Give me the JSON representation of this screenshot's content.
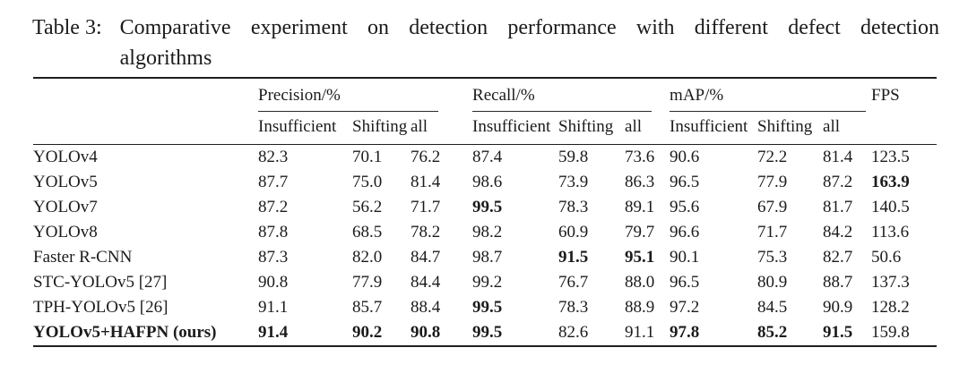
{
  "title": {
    "label": "Table 3:",
    "line1": "Comparative experiment on detection performance with different defect detection",
    "line2": "algorithms"
  },
  "table": {
    "groups": [
      {
        "label": "Precision/%"
      },
      {
        "label": "Recall/%"
      },
      {
        "label": "mAP/%"
      }
    ],
    "fps_label": "FPS",
    "subheaders": [
      "Insufficient",
      "Shifting",
      "all"
    ],
    "rows": [
      {
        "method": "YOLOv4",
        "method_bold": false,
        "values": [
          "82.3",
          "70.1",
          "76.2",
          "87.4",
          "59.8",
          "73.6",
          "90.6",
          "72.2",
          "81.4",
          "123.5"
        ],
        "bold": [
          0,
          0,
          0,
          0,
          0,
          0,
          0,
          0,
          0,
          0
        ]
      },
      {
        "method": "YOLOv5",
        "method_bold": false,
        "values": [
          "87.7",
          "75.0",
          "81.4",
          "98.6",
          "73.9",
          "86.3",
          "96.5",
          "77.9",
          "87.2",
          "163.9"
        ],
        "bold": [
          0,
          0,
          0,
          0,
          0,
          0,
          0,
          0,
          0,
          1
        ]
      },
      {
        "method": "YOLOv7",
        "method_bold": false,
        "values": [
          "87.2",
          "56.2",
          "71.7",
          "99.5",
          "78.3",
          "89.1",
          "95.6",
          "67.9",
          "81.7",
          "140.5"
        ],
        "bold": [
          0,
          0,
          0,
          1,
          0,
          0,
          0,
          0,
          0,
          0
        ]
      },
      {
        "method": "YOLOv8",
        "method_bold": false,
        "values": [
          "87.8",
          "68.5",
          "78.2",
          "98.2",
          "60.9",
          "79.7",
          "96.6",
          "71.7",
          "84.2",
          "113.6"
        ],
        "bold": [
          0,
          0,
          0,
          0,
          0,
          0,
          0,
          0,
          0,
          0
        ]
      },
      {
        "method": "Faster R-CNN",
        "method_bold": false,
        "values": [
          "87.3",
          "82.0",
          "84.7",
          "98.7",
          "91.5",
          "95.1",
          "90.1",
          "75.3",
          "82.7",
          "50.6"
        ],
        "bold": [
          0,
          0,
          0,
          0,
          1,
          1,
          0,
          0,
          0,
          0
        ]
      },
      {
        "method": "STC-YOLOv5 [27]",
        "method_bold": false,
        "values": [
          "90.8",
          "77.9",
          "84.4",
          "99.2",
          "76.7",
          "88.0",
          "96.5",
          "80.9",
          "88.7",
          "137.3"
        ],
        "bold": [
          0,
          0,
          0,
          0,
          0,
          0,
          0,
          0,
          0,
          0
        ]
      },
      {
        "method": "TPH-YOLOv5 [26]",
        "method_bold": false,
        "values": [
          "91.1",
          "85.7",
          "88.4",
          "99.5",
          "78.3",
          "88.9",
          "97.2",
          "84.5",
          "90.9",
          "128.2"
        ],
        "bold": [
          0,
          0,
          0,
          1,
          0,
          0,
          0,
          0,
          0,
          0
        ]
      },
      {
        "method": "YOLOv5+HAFPN (ours)",
        "method_bold": true,
        "values": [
          "91.4",
          "90.2",
          "90.8",
          "99.5",
          "82.6",
          "91.1",
          "97.8",
          "85.2",
          "91.5",
          "159.8"
        ],
        "bold": [
          1,
          1,
          1,
          1,
          0,
          0,
          1,
          1,
          1,
          0
        ]
      }
    ]
  }
}
